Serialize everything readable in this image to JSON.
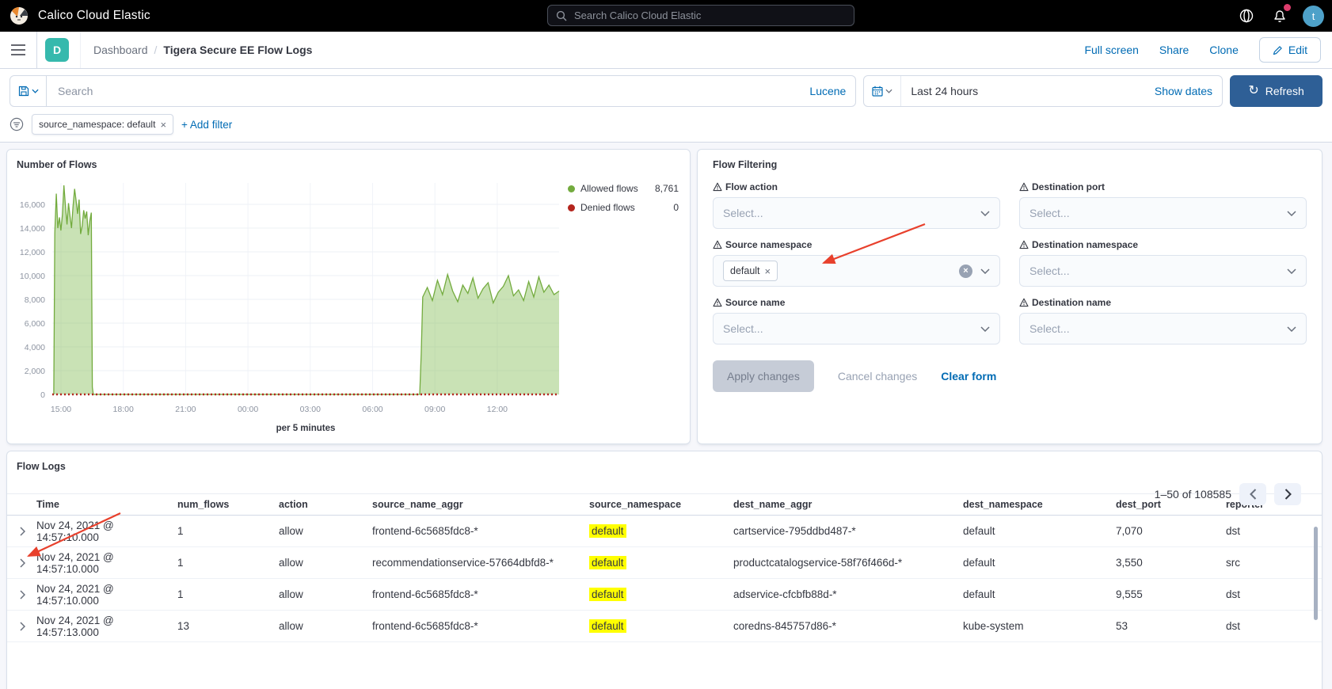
{
  "topbar": {
    "app_title": "Calico Cloud Elastic",
    "search_placeholder": "Search Calico Cloud Elastic",
    "avatar_initial": "t"
  },
  "breadcrumb_bar": {
    "dashboard_badge": "D",
    "breadcrumb_root": "Dashboard",
    "breadcrumb_separator": "/",
    "breadcrumb_current": "Tigera Secure EE Flow Logs",
    "actions": {
      "full_screen": "Full screen",
      "share": "Share",
      "clone": "Clone",
      "edit": "Edit"
    }
  },
  "query_bar": {
    "search_placeholder": "Search",
    "query_language": "Lucene",
    "time_range": "Last 24 hours",
    "show_dates": "Show dates",
    "refresh_label": "Refresh"
  },
  "filter_bar": {
    "filter_pill": "source_namespace: default",
    "add_filter": "+ Add filter"
  },
  "flow_filtering": {
    "title": "Flow Filtering",
    "fields": [
      {
        "label": "Flow action",
        "placeholder": "Select..."
      },
      {
        "label": "Destination port",
        "placeholder": "Select..."
      },
      {
        "label": "Source namespace",
        "chip": "default"
      },
      {
        "label": "Destination namespace",
        "placeholder": "Select..."
      },
      {
        "label": "Source name",
        "placeholder": "Select..."
      },
      {
        "label": "Destination name",
        "placeholder": "Select..."
      }
    ],
    "apply_label": "Apply changes",
    "cancel_label": "Cancel changes",
    "clear_label": "Clear form"
  },
  "flow_logs": {
    "title": "Flow Logs",
    "pagination": "1–50 of 108585",
    "columns": [
      "Time",
      "num_flows",
      "action",
      "source_name_aggr",
      "source_namespace",
      "dest_name_aggr",
      "dest_namespace",
      "dest_port",
      "reporter"
    ],
    "rows": [
      [
        "Nov 24, 2021 @ 14:57:10.000",
        "1",
        "allow",
        "frontend-6c5685fdc8-*",
        "default",
        "cartservice-795ddbd487-*",
        "default",
        "7,070",
        "dst"
      ],
      [
        "Nov 24, 2021 @ 14:57:10.000",
        "1",
        "allow",
        "recommendationservice-57664dbfd8-*",
        "default",
        "productcatalogservice-58f76f466d-*",
        "default",
        "3,550",
        "src"
      ],
      [
        "Nov 24, 2021 @ 14:57:10.000",
        "1",
        "allow",
        "frontend-6c5685fdc8-*",
        "default",
        "adservice-cfcbfb88d-*",
        "default",
        "9,555",
        "dst"
      ],
      [
        "Nov 24, 2021 @ 14:57:13.000",
        "13",
        "allow",
        "frontend-6c5685fdc8-*",
        "default",
        "coredns-845757d86-*",
        "kube-system",
        "53",
        "dst"
      ]
    ]
  },
  "chart_data": {
    "type": "area",
    "title": "Number of Flows",
    "xlabel": "per 5 minutes",
    "x_ticks": [
      "15:00",
      "18:00",
      "21:00",
      "00:00",
      "03:00",
      "06:00",
      "09:00",
      "12:00"
    ],
    "y_ticks": [
      0,
      2000,
      4000,
      6000,
      8000,
      10000,
      12000,
      14000,
      16000
    ],
    "ylim": [
      0,
      17800
    ],
    "grid": true,
    "legend_position": "right",
    "legend": [
      {
        "label": "Allowed flows",
        "value": "8,761",
        "color": "#73ab3e"
      },
      {
        "label": "Denied flows",
        "value": "0",
        "color": "#b4251d"
      }
    ],
    "series": [
      {
        "name": "Allowed flows",
        "color": "#73ab3e",
        "fill": "rgba(136,190,92,0.45)",
        "points": [
          [
            0.003,
            0
          ],
          [
            0.005,
            13600
          ],
          [
            0.008,
            16900
          ],
          [
            0.011,
            14000
          ],
          [
            0.014,
            14900
          ],
          [
            0.017,
            13800
          ],
          [
            0.02,
            15100
          ],
          [
            0.023,
            17600
          ],
          [
            0.026,
            15900
          ],
          [
            0.029,
            14300
          ],
          [
            0.032,
            16100
          ],
          [
            0.035,
            15000
          ],
          [
            0.038,
            14000
          ],
          [
            0.041,
            15800
          ],
          [
            0.044,
            17300
          ],
          [
            0.047,
            16300
          ],
          [
            0.05,
            15200
          ],
          [
            0.053,
            16400
          ],
          [
            0.056,
            13500
          ],
          [
            0.059,
            14200
          ],
          [
            0.062,
            15500
          ],
          [
            0.065,
            14800
          ],
          [
            0.068,
            15400
          ],
          [
            0.071,
            13400
          ],
          [
            0.074,
            14600
          ],
          [
            0.077,
            15300
          ],
          [
            0.079,
            600
          ],
          [
            0.081,
            0
          ],
          [
            0.725,
            0
          ],
          [
            0.728,
            3400
          ],
          [
            0.731,
            8200
          ],
          [
            0.74,
            9000
          ],
          [
            0.75,
            7900
          ],
          [
            0.76,
            9600
          ],
          [
            0.77,
            8400
          ],
          [
            0.78,
            10100
          ],
          [
            0.79,
            8700
          ],
          [
            0.8,
            7800
          ],
          [
            0.81,
            9200
          ],
          [
            0.82,
            8500
          ],
          [
            0.83,
            9800
          ],
          [
            0.84,
            8100
          ],
          [
            0.85,
            8900
          ],
          [
            0.86,
            9400
          ],
          [
            0.87,
            7700
          ],
          [
            0.88,
            8600
          ],
          [
            0.89,
            9100
          ],
          [
            0.9,
            10000
          ],
          [
            0.91,
            8300
          ],
          [
            0.92,
            8800
          ],
          [
            0.93,
            7900
          ],
          [
            0.94,
            9500
          ],
          [
            0.95,
            8200
          ],
          [
            0.96,
            9900
          ],
          [
            0.97,
            8600
          ],
          [
            0.98,
            9200
          ],
          [
            0.99,
            8400
          ],
          [
            1.0,
            8700
          ]
        ]
      },
      {
        "name": "Denied flows",
        "color": "#b4251d",
        "style": "dotted",
        "points": [
          [
            0,
            0
          ],
          [
            1,
            0
          ]
        ]
      }
    ]
  },
  "colors": {
    "link_blue": "#006bb4",
    "refresh_button": "#2e5f96",
    "badge_teal": "#36b9ad",
    "highlight_yellow": "#ffff00",
    "annotation_red": "#e8402c",
    "allowed_green": "#73ab3e",
    "denied_red": "#b4251d"
  },
  "icons": {
    "refresh": "↻",
    "close": "×",
    "clear": "×"
  }
}
